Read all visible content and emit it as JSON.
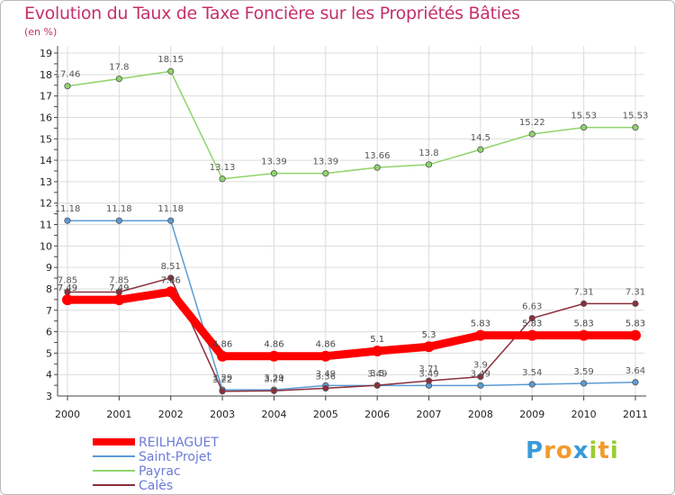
{
  "chart_data": {
    "type": "line",
    "title": "Evolution du Taux de Taxe Foncière sur les Propriétés Bâties",
    "subtitle": "(en %)",
    "xlabel": "",
    "ylabel": "",
    "x": [
      "2000",
      "2001",
      "2002",
      "2003",
      "2004",
      "2005",
      "2006",
      "2007",
      "2008",
      "2009",
      "2010",
      "2011"
    ],
    "ylim": [
      3,
      19
    ],
    "yticks": [
      "3",
      "4",
      "5",
      "6",
      "7",
      "8",
      "9",
      "10",
      "11",
      "12",
      "13",
      "14",
      "15",
      "16",
      "17",
      "18",
      "19"
    ],
    "legend_position": "bottom-left",
    "series": [
      {
        "name": "REILHAGUET",
        "color": "#ff0000",
        "values": [
          7.49,
          7.49,
          7.86,
          4.86,
          4.86,
          4.86,
          5.1,
          5.3,
          5.83,
          5.83,
          5.83,
          5.83
        ],
        "labels": [
          "7.49",
          "7.49",
          "7.86",
          "4.86",
          "4.86",
          "4.86",
          "5.1",
          "5.3",
          "5.83",
          "5.83",
          "5.83",
          "5.83"
        ]
      },
      {
        "name": "Saint-Projet",
        "color": "#5b9bd5",
        "values": [
          11.18,
          11.18,
          11.18,
          3.29,
          3.29,
          3.49,
          3.49,
          3.49,
          3.49,
          3.54,
          3.59,
          3.64
        ],
        "labels": [
          "11.18",
          "11.18",
          "11.18",
          "3.29",
          "3.29",
          "3.49",
          "3.49",
          "3.49",
          "3.49",
          "3.54",
          "3.59",
          "3.64"
        ]
      },
      {
        "name": "Payrac",
        "color": "#8fd46b",
        "values": [
          17.46,
          17.8,
          18.15,
          13.13,
          13.39,
          13.39,
          13.66,
          13.8,
          14.5,
          15.22,
          15.53,
          15.53
        ],
        "labels": [
          "17.46",
          "17.8",
          "18.15",
          "13.13",
          "13.39",
          "13.39",
          "13.66",
          "13.8",
          "14.5",
          "15.22",
          "15.53",
          "15.53"
        ]
      },
      {
        "name": "Calès",
        "color": "#8b2f3c",
        "values": [
          7.85,
          7.85,
          8.51,
          3.22,
          3.24,
          3.36,
          3.5,
          3.71,
          3.9,
          6.63,
          7.31,
          7.31
        ],
        "labels": [
          "7.85",
          "7.85",
          "8.51",
          "3.22",
          "3.24",
          "3.36",
          "3.5",
          "3.71",
          "3.9",
          "6.63",
          "7.31",
          "7.31"
        ]
      }
    ]
  },
  "logo": {
    "letters": [
      "P",
      "r",
      "o",
      "x",
      "i",
      "t",
      "i"
    ],
    "colors": [
      "#3a9ad9",
      "#f29a2e",
      "#f29a2e",
      "#3a9ad9",
      "#9acd32",
      "#f29a2e",
      "#9acd32"
    ]
  }
}
